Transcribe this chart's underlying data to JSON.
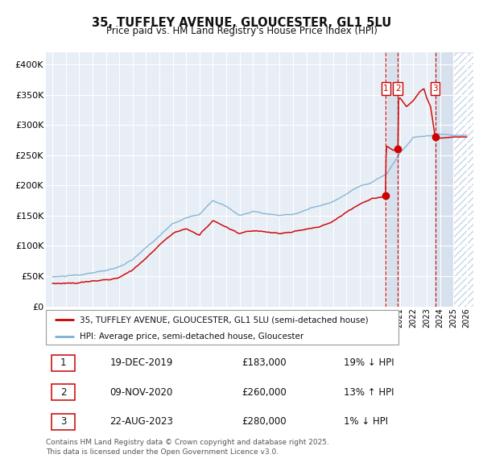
{
  "title": "35, TUFFLEY AVENUE, GLOUCESTER, GL1 5LU",
  "subtitle": "Price paid vs. HM Land Registry's House Price Index (HPI)",
  "legend_line1": "35, TUFFLEY AVENUE, GLOUCESTER, GL1 5LU (semi-detached house)",
  "legend_line2": "HPI: Average price, semi-detached house, Gloucester",
  "footnote": "Contains HM Land Registry data © Crown copyright and database right 2025.\nThis data is licensed under the Open Government Licence v3.0.",
  "transactions": [
    {
      "num": 1,
      "date": "19-DEC-2019",
      "price": "£183,000",
      "hpi": "19% ↓ HPI",
      "year": 2019.96
    },
    {
      "num": 2,
      "date": "09-NOV-2020",
      "price": "£260,000",
      "hpi": "13% ↑ HPI",
      "year": 2020.86
    },
    {
      "num": 3,
      "date": "22-AUG-2023",
      "price": "£280,000",
      "hpi": "1% ↓ HPI",
      "year": 2023.64
    }
  ],
  "sale_prices": [
    183000,
    260000,
    280000
  ],
  "sale_years": [
    2019.96,
    2020.86,
    2023.64
  ],
  "ylim": [
    0,
    420000
  ],
  "xlim_start": 1994.5,
  "xlim_end": 2026.5,
  "red_color": "#cc0000",
  "blue_color": "#7bafd4",
  "dashed_red": "#cc0000",
  "background_plot": "#e8eef5",
  "shade_color": "#d0dcec",
  "hatch_color": "#c8d4e4",
  "background_fig": "#ffffff",
  "hpi_breakpoints": [
    [
      1995,
      49000
    ],
    [
      1996,
      50000
    ],
    [
      1997,
      51000
    ],
    [
      1998,
      54000
    ],
    [
      1999,
      58000
    ],
    [
      2000,
      65000
    ],
    [
      2001,
      76000
    ],
    [
      2002,
      95000
    ],
    [
      2003,
      115000
    ],
    [
      2004,
      135000
    ],
    [
      2005,
      145000
    ],
    [
      2006,
      152000
    ],
    [
      2007,
      175000
    ],
    [
      2008,
      165000
    ],
    [
      2009,
      148000
    ],
    [
      2010,
      155000
    ],
    [
      2011,
      150000
    ],
    [
      2012,
      148000
    ],
    [
      2013,
      150000
    ],
    [
      2014,
      158000
    ],
    [
      2015,
      165000
    ],
    [
      2016,
      172000
    ],
    [
      2017,
      185000
    ],
    [
      2018,
      198000
    ],
    [
      2019,
      208000
    ],
    [
      2020,
      220000
    ],
    [
      2021,
      255000
    ],
    [
      2022,
      280000
    ],
    [
      2023,
      280000
    ],
    [
      2024,
      283000
    ],
    [
      2025,
      283000
    ],
    [
      2026,
      283000
    ]
  ],
  "red_breakpoints": [
    [
      1995,
      38000
    ],
    [
      1996,
      39000
    ],
    [
      1997,
      40000
    ],
    [
      1998,
      42000
    ],
    [
      1999,
      44000
    ],
    [
      2000,
      50000
    ],
    [
      2001,
      62000
    ],
    [
      2002,
      80000
    ],
    [
      2003,
      100000
    ],
    [
      2004,
      120000
    ],
    [
      2005,
      128000
    ],
    [
      2006,
      118000
    ],
    [
      2007,
      142000
    ],
    [
      2008,
      132000
    ],
    [
      2009,
      118000
    ],
    [
      2010,
      122000
    ],
    [
      2011,
      120000
    ],
    [
      2012,
      118000
    ],
    [
      2013,
      120000
    ],
    [
      2014,
      126000
    ],
    [
      2015,
      130000
    ],
    [
      2016,
      140000
    ],
    [
      2017,
      155000
    ],
    [
      2018,
      168000
    ],
    [
      2019,
      178000
    ],
    [
      2019.96,
      183000
    ],
    [
      2019.97,
      260000
    ],
    [
      2020,
      265000
    ],
    [
      2020.5,
      258000
    ],
    [
      2020.86,
      260000
    ],
    [
      2020.87,
      340000
    ],
    [
      2021,
      345000
    ],
    [
      2021.5,
      330000
    ],
    [
      2022,
      340000
    ],
    [
      2022.5,
      355000
    ],
    [
      2022.8,
      360000
    ],
    [
      2023.0,
      345000
    ],
    [
      2023.3,
      330000
    ],
    [
      2023.64,
      280000
    ],
    [
      2023.65,
      280000
    ],
    [
      2024,
      278000
    ],
    [
      2025,
      280000
    ],
    [
      2026,
      280000
    ]
  ]
}
